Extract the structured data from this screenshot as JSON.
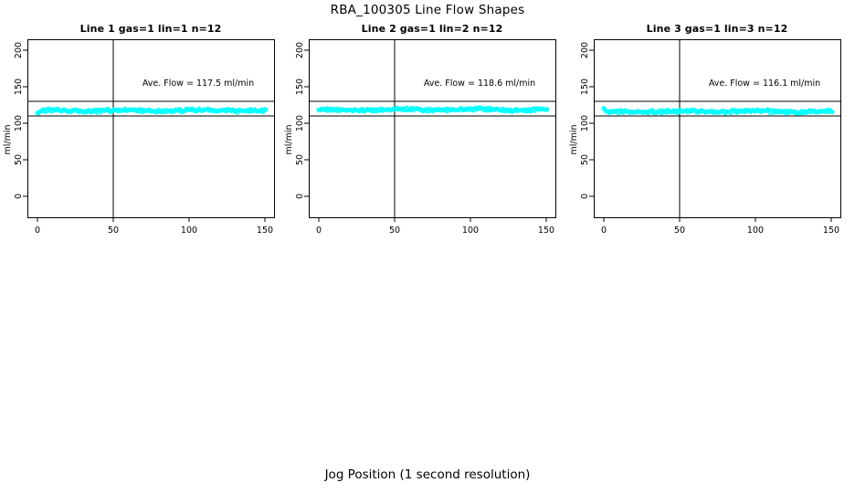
{
  "figure": {
    "title": "RBA_100305  Line Flow Shapes",
    "xlabel": "Jog Position (1 second resolution)"
  },
  "chart_data": {
    "type": "scatter",
    "title": "RBA_100305  Line Flow Shapes",
    "xlabel": "Jog Position (1 second resolution)",
    "ylabel": "ml/min",
    "x_ticks": [
      0,
      50,
      100,
      150
    ],
    "y_ticks": [
      0,
      50,
      100,
      150,
      200
    ],
    "xlim": [
      -6.5,
      156.5
    ],
    "ylim": [
      -28,
      215
    ],
    "grid": false,
    "legend": "none",
    "point_color": "#00FFFF",
    "line_color": "#000000",
    "v_ref_line_x": 50,
    "h_ref_lines": [
      130,
      110
    ],
    "x_point_range": [
      0,
      151
    ],
    "panels": [
      {
        "title": "Line 1 gas=1 lin=1 n=12",
        "ave_flow": 117.5,
        "ave_flow_label": "Ave. Flow =  117.5  ml/min",
        "band_halfwidth": 2.4,
        "start_transient": [
          -3,
          -1
        ],
        "seed": 101
      },
      {
        "title": "Line 2 gas=1 lin=2 n=12",
        "ave_flow": 118.6,
        "ave_flow_label": "Ave. Flow =  118.6  ml/min",
        "band_halfwidth": 2.4,
        "start_transient": [
          -2,
          -0.5
        ],
        "seed": 202
      },
      {
        "title": "Line 3 gas=1 lin=3 n=12",
        "ave_flow": 116.1,
        "ave_flow_label": "Ave. Flow =  116.1  ml/min",
        "band_halfwidth": 2.4,
        "start_transient": [
          6,
          -2.5
        ],
        "seed": 303
      }
    ]
  }
}
